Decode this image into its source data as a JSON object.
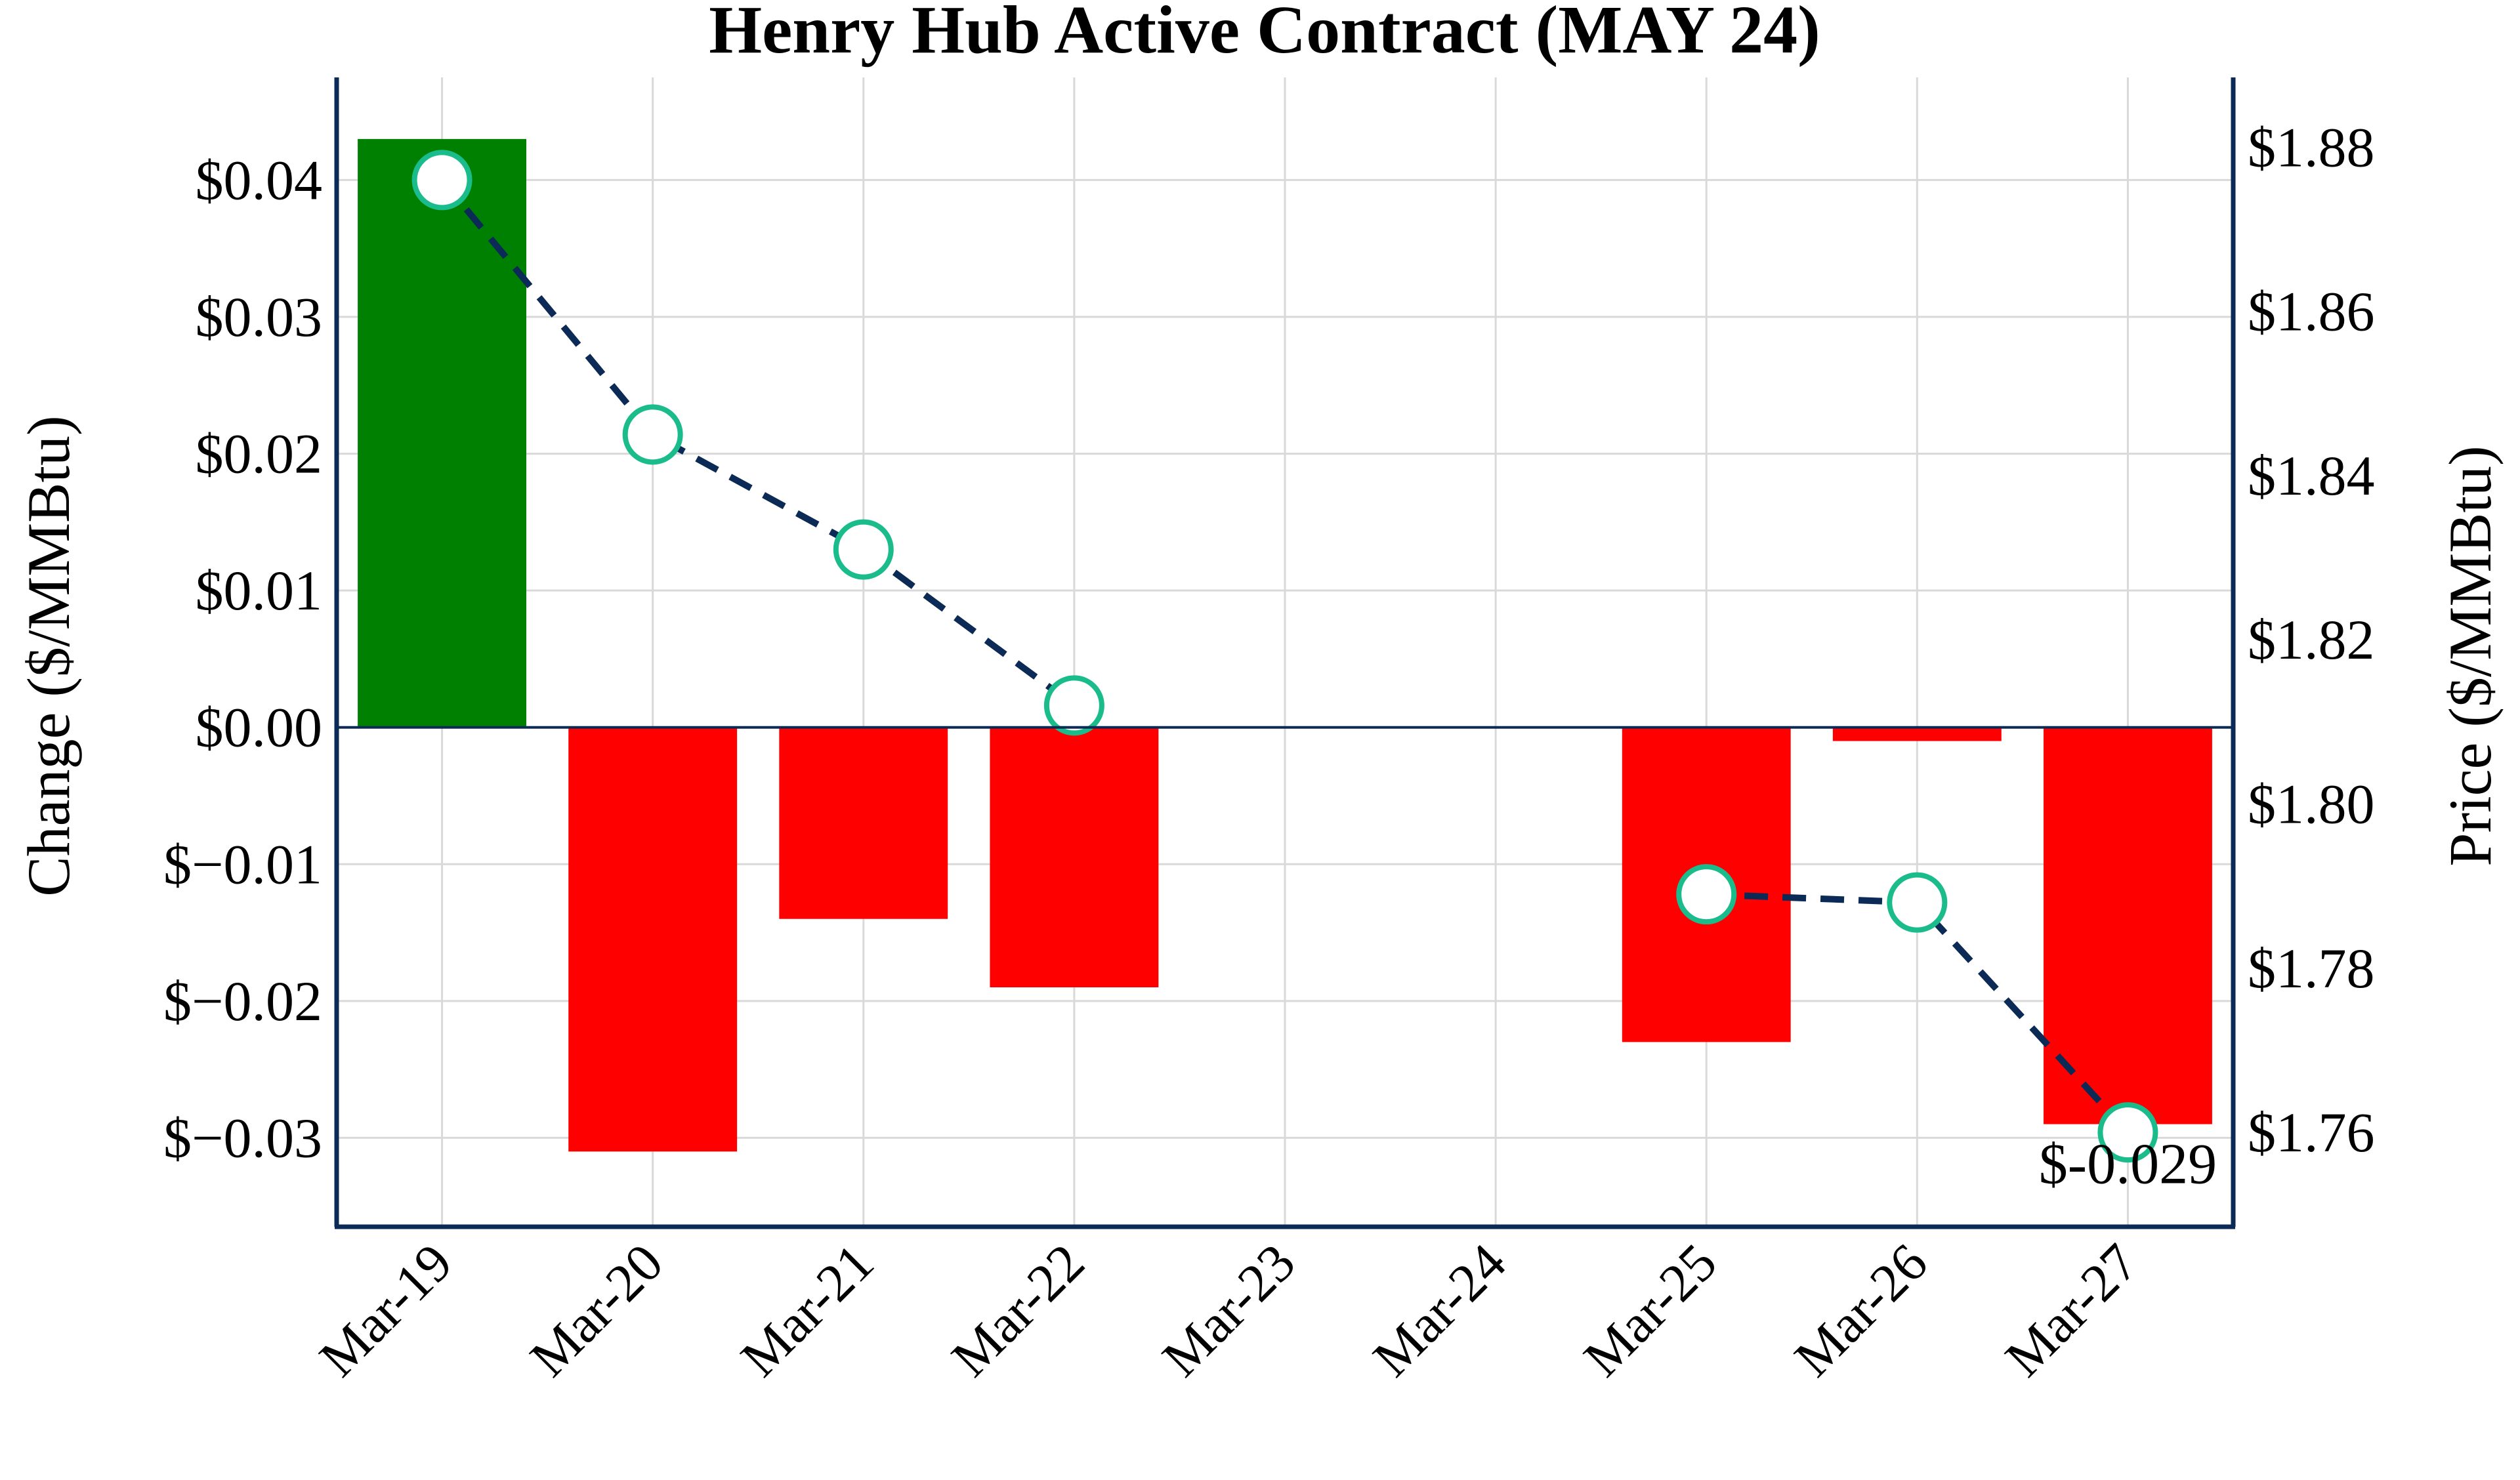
{
  "chart_data": {
    "type": "bar",
    "title": "Henry Hub Active Contract (MAY 24)",
    "categories": [
      "Mar-19",
      "Mar-20",
      "Mar-21",
      "Mar-22",
      "Mar-23",
      "Mar-24",
      "Mar-25",
      "Mar-26",
      "Mar-27"
    ],
    "series": [
      {
        "type": "bar",
        "axis": "left",
        "values": [
          0.043,
          -0.031,
          -0.014,
          -0.019,
          null,
          null,
          -0.023,
          -0.001,
          -0.029
        ],
        "positive_color": "#008000",
        "negative_color": "#ff0000"
      },
      {
        "type": "line",
        "axis": "right",
        "values": [
          1.876,
          1.845,
          1.831,
          1.812,
          null,
          null,
          1.789,
          1.788,
          1.76
        ],
        "line_color": "#0b2a55",
        "line_style": "dashed",
        "marker_edge_color": "#1abc8c",
        "marker_fill": "#ffffff"
      }
    ],
    "ylabel": "Change ($/MMBtu)",
    "ylabel_right": "Price ($/MMBtu)",
    "ylim": [
      -0.0365,
      0.0475
    ],
    "ylim_right": [
      1.7485,
      1.8885
    ],
    "yticks": [
      {
        "value": 0.04,
        "label": "$0.04"
      },
      {
        "value": 0.03,
        "label": "$0.03"
      },
      {
        "value": 0.02,
        "label": "$0.02"
      },
      {
        "value": 0.01,
        "label": "$0.01"
      },
      {
        "value": 0.0,
        "label": "$0.00"
      },
      {
        "value": -0.01,
        "label": "$−0.01"
      },
      {
        "value": -0.02,
        "label": "$−0.02"
      },
      {
        "value": -0.03,
        "label": "$−0.03"
      }
    ],
    "yticks_right": [
      {
        "value": 1.88,
        "label": "$1.88"
      },
      {
        "value": 1.86,
        "label": "$1.86"
      },
      {
        "value": 1.84,
        "label": "$1.84"
      },
      {
        "value": 1.82,
        "label": "$1.82"
      },
      {
        "value": 1.8,
        "label": "$1.80"
      },
      {
        "value": 1.78,
        "label": "$1.78"
      },
      {
        "value": 1.76,
        "label": "$1.76"
      }
    ],
    "annotations": [
      {
        "category": "Mar-27",
        "value": -0.029,
        "text": "$-0.029"
      }
    ],
    "grid": true,
    "zero_line_color": "#0b2a55",
    "axes_color": "#0b2a55",
    "grid_color": "#d9d9d9"
  }
}
